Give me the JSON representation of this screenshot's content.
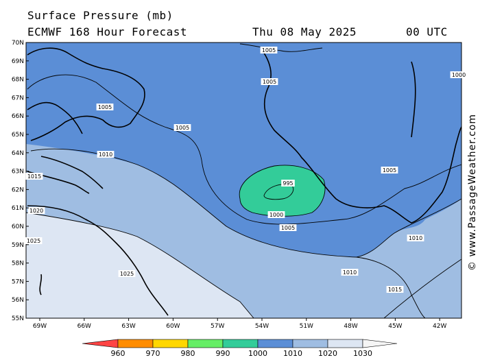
{
  "header": {
    "title": "Surface Pressure (mb)",
    "model": "ECMWF 168 Hour Forecast",
    "date": "Thu 08 May 2025",
    "time": "00 UTC"
  },
  "credit": "© www.PassageWeather.com",
  "axes": {
    "lat_labels": [
      "70N",
      "69N",
      "68N",
      "67N",
      "66N",
      "65N",
      "64N",
      "63N",
      "62N",
      "61N",
      "60N",
      "59N",
      "58N",
      "57N",
      "56N",
      "55N"
    ],
    "lon_labels": [
      "69W",
      "66W",
      "63W",
      "60W",
      "57W",
      "54W",
      "51W",
      "48W",
      "45W",
      "42W"
    ]
  },
  "isobars": [
    {
      "value": "1005",
      "at": "top"
    },
    {
      "value": "1005",
      "at": "greenland-west"
    },
    {
      "value": "1005",
      "at": "baffin"
    },
    {
      "value": "1005",
      "at": "central"
    },
    {
      "value": "1010",
      "at": "labrador-north"
    },
    {
      "value": "1015",
      "at": "west-edge"
    },
    {
      "value": "1020",
      "at": "west-edge"
    },
    {
      "value": "1025",
      "at": "west-edge"
    },
    {
      "value": "1025",
      "at": "labrador"
    },
    {
      "value": "995",
      "at": "low-center"
    },
    {
      "value": "1000",
      "at": "low"
    },
    {
      "value": "1005",
      "at": "low-south"
    },
    {
      "value": "1005",
      "at": "greenland-south"
    },
    {
      "value": "1010",
      "at": "cape-farewell"
    },
    {
      "value": "1010",
      "at": "south-central"
    },
    {
      "value": "1015",
      "at": "southeast"
    },
    {
      "value": "1000",
      "at": "top-right"
    }
  ],
  "legend": {
    "labels": [
      "960",
      "970",
      "980",
      "990",
      "1000",
      "1010",
      "1020",
      "1030"
    ],
    "colors": [
      "#ff4444",
      "#ff8c00",
      "#ffd700",
      "#66ee66",
      "#33cc99",
      "#5b8ed6",
      "#9fbde2",
      "#dde6f3",
      "#f5f5f5"
    ]
  },
  "colors": {
    "band_1000_1010": "#5b8ed6",
    "band_990_1000": "#33cc99",
    "band_1010_1020": "#9fbde2",
    "band_1020_1030": "#dde6f3"
  }
}
